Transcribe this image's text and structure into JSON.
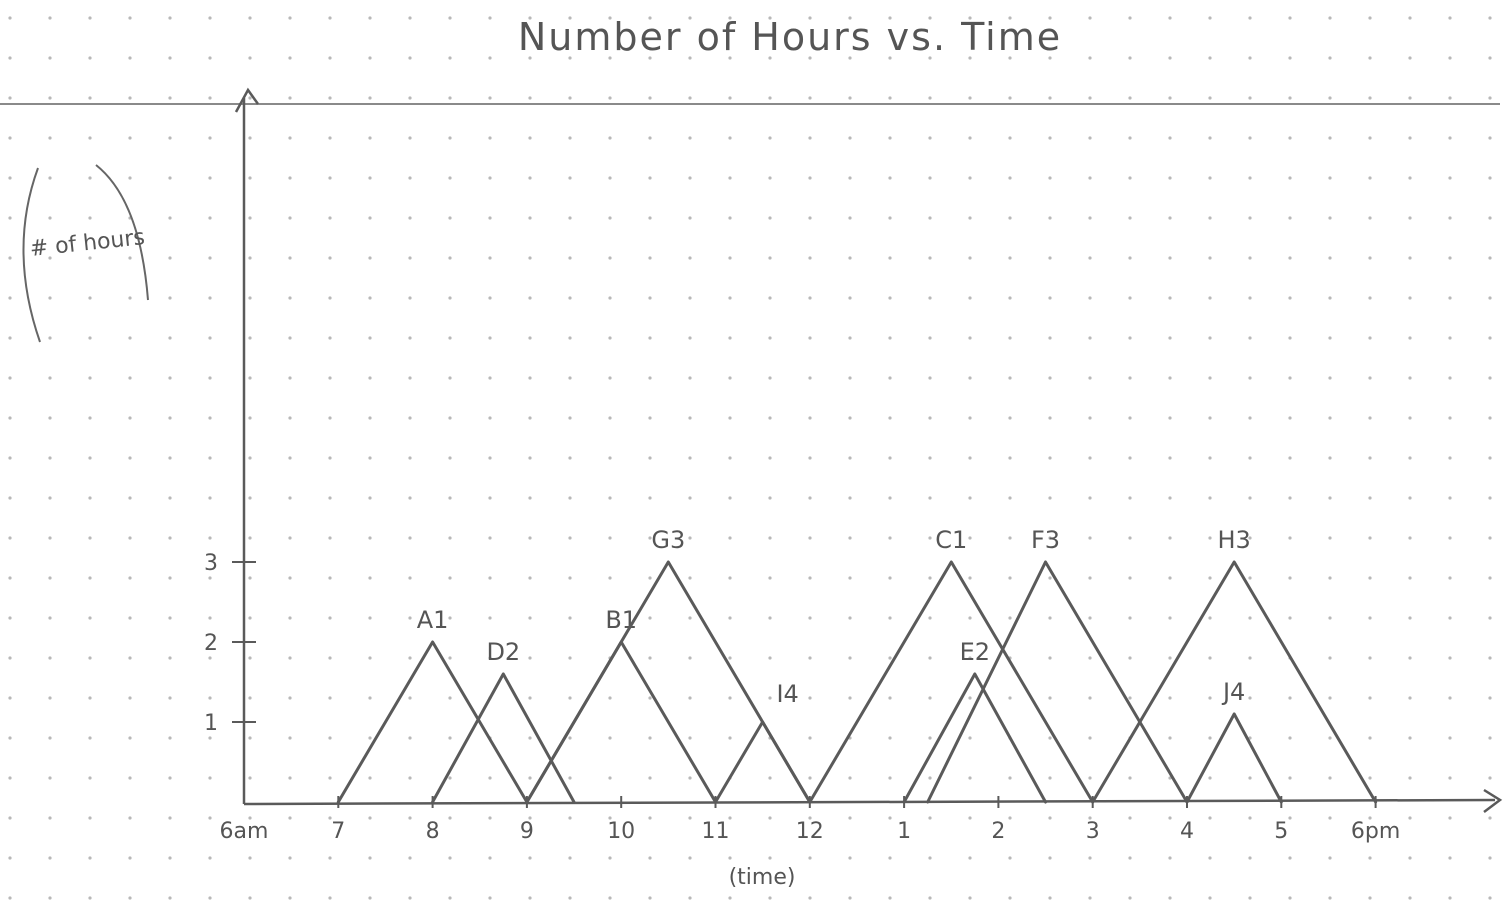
{
  "chart_data": {
    "type": "line",
    "title": "Number of Hours vs. Time",
    "xlabel": "(time)",
    "ylabel": "# of hours",
    "x_ticks": [
      "6am",
      "7",
      "8",
      "9",
      "10",
      "11",
      "12",
      "1",
      "2",
      "3",
      "4",
      "5",
      "6pm"
    ],
    "y_ticks": [
      "1",
      "2",
      "3"
    ],
    "ylim": [
      0,
      3
    ],
    "grid": "dot grid paper",
    "ink_color": "#5a5a5a",
    "series": [
      {
        "name": "A1",
        "points": [
          [
            7,
            0
          ],
          [
            8,
            2
          ],
          [
            9,
            0
          ]
        ]
      },
      {
        "name": "D2",
        "points": [
          [
            8,
            0
          ],
          [
            8.75,
            1.6
          ],
          [
            9.5,
            0
          ]
        ]
      },
      {
        "name": "B1",
        "points": [
          [
            9,
            0
          ],
          [
            10,
            2
          ],
          [
            11,
            0
          ]
        ]
      },
      {
        "name": "G3",
        "points": [
          [
            9,
            0
          ],
          [
            10.5,
            3
          ],
          [
            12,
            0
          ]
        ]
      },
      {
        "name": "I4",
        "points": [
          [
            11,
            0
          ],
          [
            11.5,
            1
          ],
          [
            12,
            0
          ]
        ]
      },
      {
        "name": "C1",
        "points": [
          [
            12,
            0
          ],
          [
            13.5,
            3
          ],
          [
            15,
            0
          ]
        ]
      },
      {
        "name": "E2",
        "points": [
          [
            13,
            0
          ],
          [
            13.75,
            1.6
          ],
          [
            14.5,
            0
          ]
        ]
      },
      {
        "name": "F3",
        "points": [
          [
            13.25,
            0
          ],
          [
            14.5,
            3
          ],
          [
            16,
            0
          ]
        ]
      },
      {
        "name": "H3",
        "points": [
          [
            15,
            0
          ],
          [
            16.5,
            3
          ],
          [
            18,
            0
          ]
        ]
      },
      {
        "name": "J4",
        "points": [
          [
            16,
            0
          ],
          [
            16.5,
            1.1
          ],
          [
            17,
            0
          ]
        ]
      }
    ]
  }
}
